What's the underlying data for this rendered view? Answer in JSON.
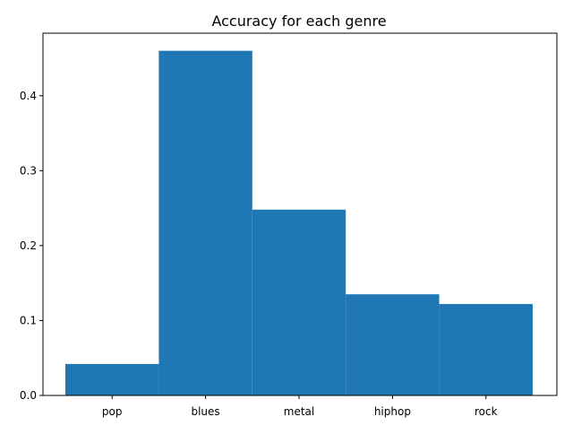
{
  "chart_data": {
    "type": "bar",
    "title": "Accuracy for each genre",
    "xlabel": "",
    "ylabel": "",
    "categories": [
      "pop",
      "blues",
      "metal",
      "hiphop",
      "rock"
    ],
    "values": [
      0.042,
      0.46,
      0.248,
      0.135,
      0.122
    ],
    "ylim": [
      0,
      0.4835
    ],
    "yticks": [
      0.0,
      0.1,
      0.2,
      0.3,
      0.4
    ],
    "ytick_labels": [
      "0.0",
      "0.1",
      "0.2",
      "0.3",
      "0.4"
    ],
    "grid": false,
    "legend": "none",
    "bar_color": "#1f77b4"
  }
}
